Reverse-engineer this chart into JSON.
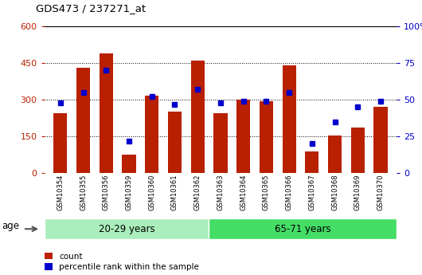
{
  "title": "GDS473 / 237271_at",
  "samples": [
    "GSM10354",
    "GSM10355",
    "GSM10356",
    "GSM10359",
    "GSM10360",
    "GSM10361",
    "GSM10362",
    "GSM10363",
    "GSM10364",
    "GSM10365",
    "GSM10366",
    "GSM10367",
    "GSM10368",
    "GSM10369",
    "GSM10370"
  ],
  "counts": [
    245,
    430,
    490,
    75,
    315,
    250,
    460,
    245,
    300,
    295,
    440,
    90,
    155,
    185,
    270
  ],
  "percentiles": [
    48,
    55,
    70,
    22,
    52,
    47,
    57,
    48,
    49,
    49,
    55,
    20,
    35,
    45,
    49
  ],
  "group1_label": "20-29 years",
  "group2_label": "65-71 years",
  "group1_count": 7,
  "group2_count": 8,
  "age_label": "age",
  "bar_color": "#B82000",
  "dot_color": "#0000CC",
  "ylim_left": [
    0,
    600
  ],
  "ylim_right": [
    0,
    100
  ],
  "yticks_left": [
    0,
    150,
    300,
    450,
    600
  ],
  "yticks_right": [
    0,
    25,
    50,
    75,
    100
  ],
  "group1_bg": "#AAEEBB",
  "group2_bg": "#44DD66",
  "plot_bg": "#FFFFFF",
  "tick_bg": "#CCCCCC",
  "legend_count": "count",
  "legend_percentile": "percentile rank within the sample"
}
